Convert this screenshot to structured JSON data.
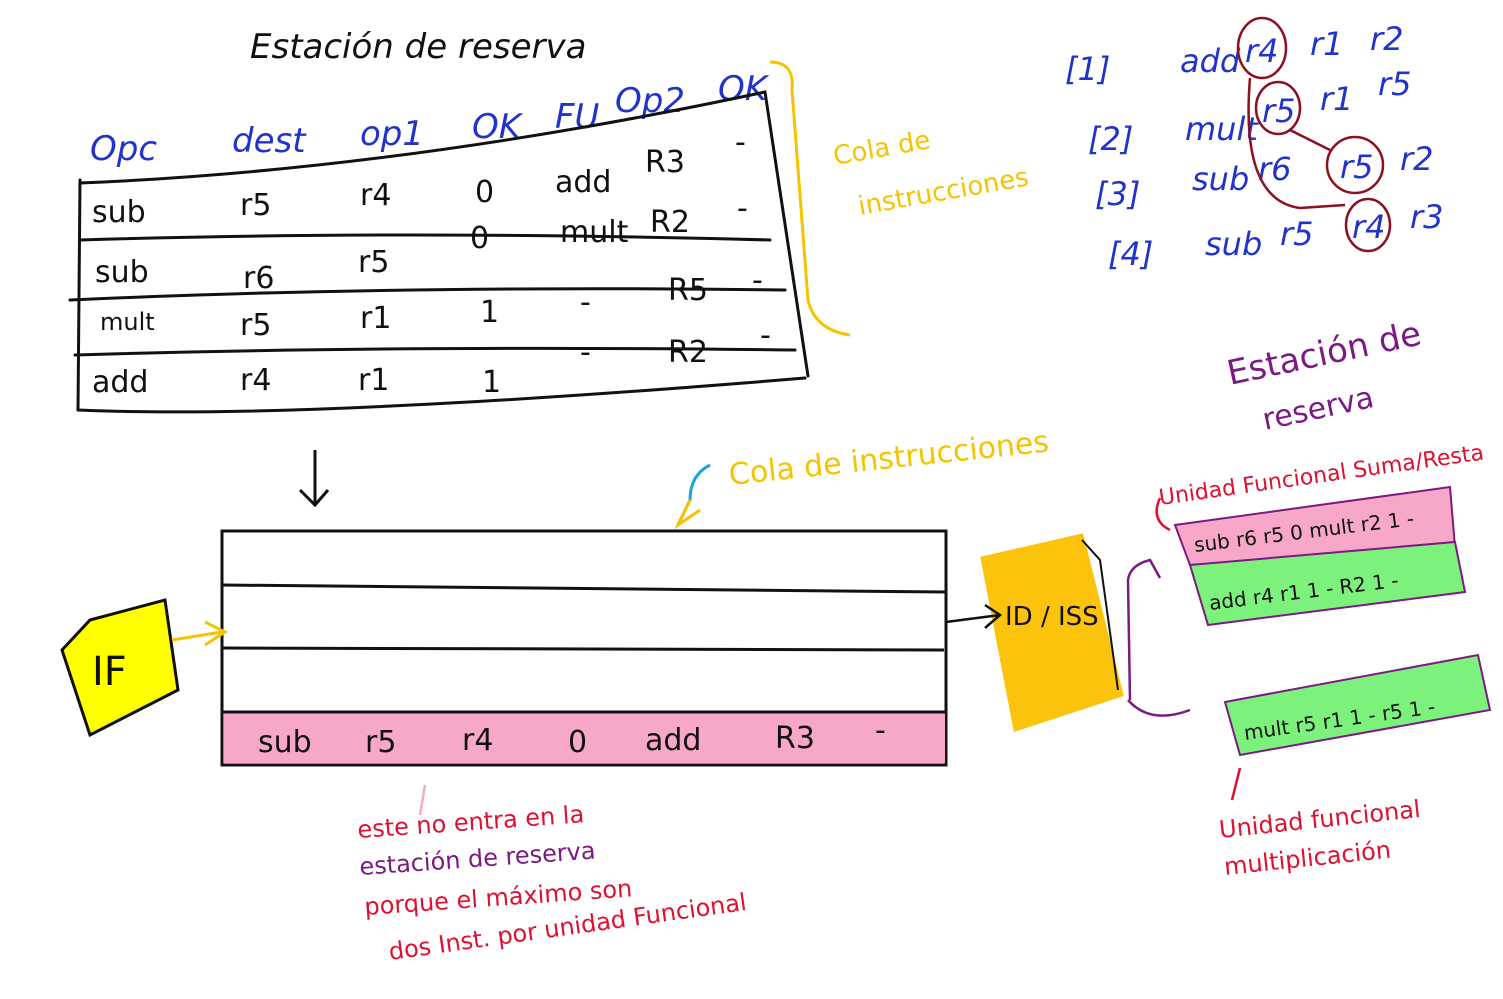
{
  "colors": {
    "ink": "#111111",
    "blue": "#2233cc",
    "yellow": "#f5c400",
    "orange_box": "#fbc30c",
    "if_box": "#ffff00",
    "pink": "#f7a8c9",
    "green": "#7cf27c",
    "red": "#e01030",
    "purple": "#7a1a82",
    "maroon": "#8b1020",
    "cyan": "#1aa4e0"
  },
  "top_table": {
    "title": "Estación de reserva",
    "headers": [
      "Opc",
      "dest",
      "op1",
      "OK",
      "FU",
      "Op2",
      "OK"
    ],
    "rows": [
      [
        "sub",
        "r5",
        "r4",
        "0",
        "add",
        "R3",
        "-"
      ],
      [
        "sub",
        "r6",
        "r5",
        "0",
        "mult",
        "R2",
        "-"
      ],
      [
        "mult",
        "r5",
        "r1",
        "1",
        "-",
        "R5",
        "-"
      ],
      [
        "add",
        "r4",
        "r1",
        "1",
        "-",
        "R2",
        "-"
      ]
    ],
    "brace_label_line1": "Cola de",
    "brace_label_line2": "instrucciones"
  },
  "instruction_list": [
    {
      "index": "[1]",
      "op": "add",
      "dest": "r4",
      "src1": "r1",
      "src2": "r2"
    },
    {
      "index": "[2]",
      "op": "mult",
      "dest": "r5",
      "src1": "r1",
      "src2": "r5"
    },
    {
      "index": "[3]",
      "op": "sub",
      "dest": "r6",
      "src1": "r5",
      "src2": "r2"
    },
    {
      "index": "[4]",
      "op": "sub",
      "dest": "r5",
      "src1": "r4",
      "src2": "r3"
    }
  ],
  "queue": {
    "label": "Cola de instrucciones",
    "highlighted_row": [
      "sub",
      "r5",
      "r4",
      "0",
      "add",
      "R3",
      "-"
    ]
  },
  "if_box": {
    "label": "IF"
  },
  "id_box": {
    "label": "ID / ISS"
  },
  "reservation_station": {
    "title_line1": "Estación de",
    "title_line2": "reserva",
    "sumresta_label": "Unidad Funcional Suma/Resta",
    "sumresta_rows": [
      "sub r6 r5 0 mult r2 1 -",
      "add r4 r1 1 - R2 1 -"
    ],
    "mult_row": "mult r5 r1 1 - r5 1 -",
    "mult_label_line1": "Unidad funcional",
    "mult_label_line2": "multiplicación"
  },
  "note": {
    "line1": "este no entra en la",
    "line2": "estación de reserva",
    "line3": "porque el máximo son",
    "line4": "dos Inst. por unidad Funcional"
  }
}
